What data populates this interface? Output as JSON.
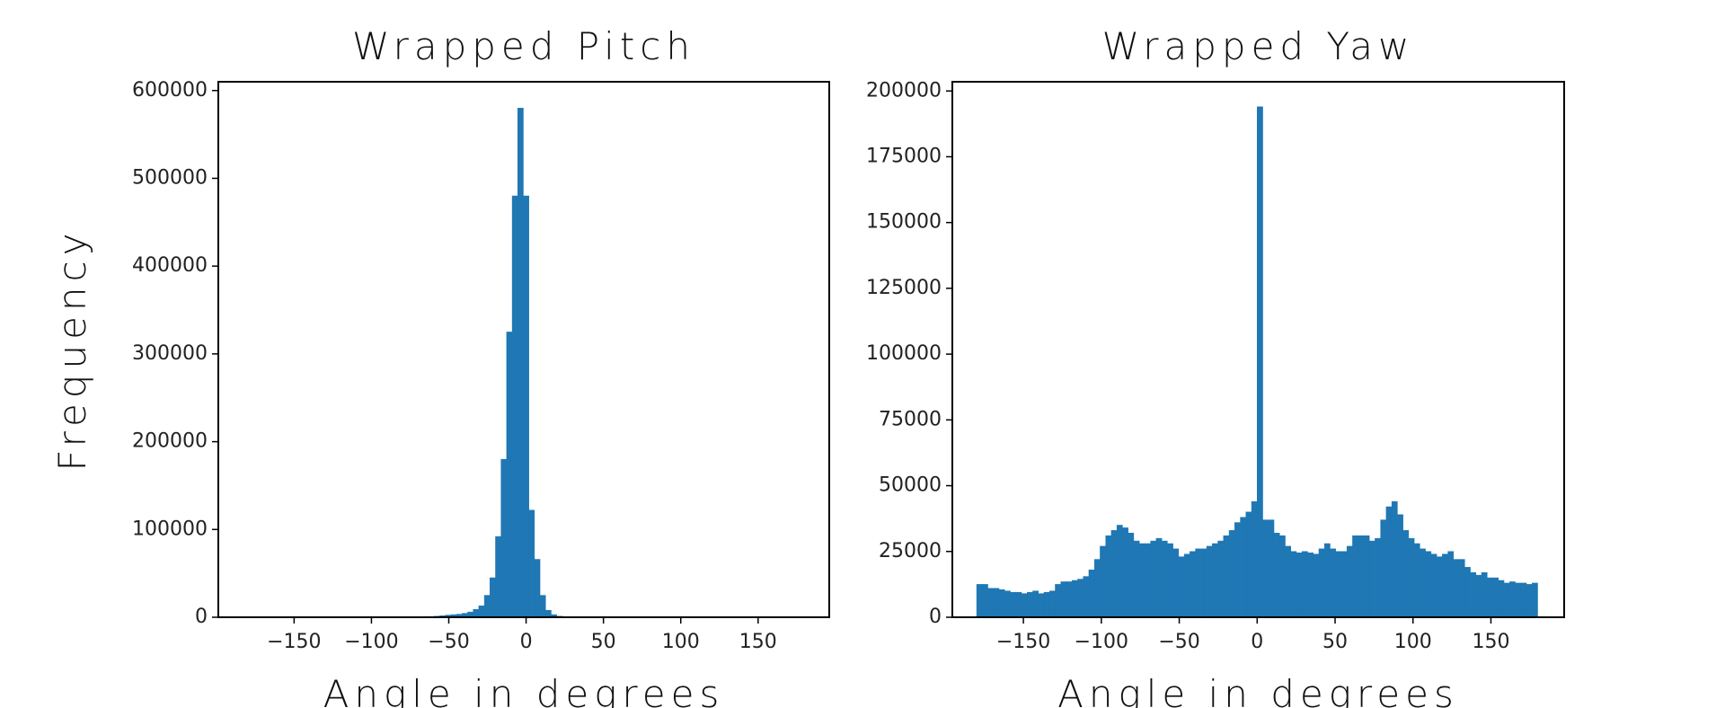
{
  "chart_data": [
    {
      "type": "histogram",
      "title": "Wrapped Pitch",
      "x_label": "Angle in degrees",
      "y_label": "Frequency",
      "color": "#1f77b4",
      "bins": [
        -70.2,
        -66.6,
        -63,
        -59.4,
        -55.8,
        -52.2,
        -48.6,
        -45,
        -41.4,
        -37.8,
        -34.2,
        -30.6,
        -27,
        -23.4,
        -19.8,
        -16.2,
        -12.6,
        -9,
        -5.4,
        -1.8,
        1.8,
        5.4,
        9,
        12.6,
        16.2,
        19.8,
        23.4,
        27
      ],
      "values": [
        300,
        500,
        800,
        1200,
        1800,
        2500,
        3000,
        3500,
        4500,
        6000,
        9000,
        13000,
        25000,
        45000,
        92000,
        180000,
        325000,
        480000,
        580000,
        480000,
        122000,
        66000,
        25000,
        8000,
        3000,
        1200,
        500
      ],
      "xlim": [
        -199,
        196
      ],
      "ylim": [
        0,
        610000
      ],
      "xticks": [
        {
          "value": -150,
          "label": "−150"
        },
        {
          "value": -100,
          "label": "−100"
        },
        {
          "value": -50,
          "label": "−50"
        },
        0,
        50,
        100,
        150
      ],
      "yticks": [
        0,
        100000,
        200000,
        300000,
        400000,
        500000,
        600000
      ]
    },
    {
      "type": "histogram",
      "title": "Wrapped Yaw",
      "x_label": "Angle in degrees",
      "color": "#1f77b4",
      "bins": [
        -180,
        -176.4,
        -172.8,
        -169.2,
        -165.6,
        -162,
        -158.4,
        -154.8,
        -151.2,
        -147.6,
        -144,
        -140.4,
        -136.8,
        -133.2,
        -129.6,
        -126,
        -122.4,
        -118.8,
        -115.2,
        -111.6,
        -108,
        -104.4,
        -100.8,
        -97.2,
        -93.6,
        -90,
        -86.4,
        -82.8,
        -79.2,
        -75.6,
        -72,
        -68.4,
        -64.8,
        -61.2,
        -57.6,
        -54,
        -50.4,
        -46.8,
        -43.2,
        -39.6,
        -36,
        -32.4,
        -28.8,
        -25.2,
        -21.6,
        -18,
        -14.4,
        -10.8,
        -7.2,
        -3.6,
        0,
        3.6,
        7.2,
        10.8,
        14.4,
        18,
        21.6,
        25.2,
        28.8,
        32.4,
        36,
        39.6,
        43.2,
        46.8,
        50.4,
        54,
        57.6,
        61.2,
        64.8,
        68.4,
        72,
        75.6,
        79.2,
        82.8,
        86.4,
        90,
        93.6,
        97.2,
        100.8,
        104.4,
        108,
        111.6,
        115.2,
        118.8,
        122.4,
        126,
        129.6,
        133.2,
        136.8,
        140.4,
        144,
        147.6,
        151.2,
        154.8,
        158.4,
        162,
        165.6,
        169.2,
        172.8,
        176.4,
        180
      ],
      "values": [
        12500,
        12500,
        11000,
        11000,
        10500,
        10000,
        9500,
        9500,
        9000,
        9500,
        10000,
        9000,
        9500,
        10000,
        12500,
        13500,
        13500,
        14000,
        14500,
        15500,
        18000,
        22000,
        27000,
        31000,
        33000,
        35000,
        34000,
        32000,
        29000,
        28000,
        28000,
        29000,
        30000,
        29000,
        28000,
        26000,
        23000,
        24000,
        25000,
        26000,
        26000,
        27000,
        28000,
        29000,
        31000,
        33000,
        36000,
        38000,
        40000,
        44000,
        194000,
        37000,
        37000,
        32000,
        31000,
        27000,
        25000,
        24500,
        25000,
        24500,
        24000,
        26000,
        28000,
        26000,
        25000,
        25000,
        27000,
        31000,
        31000,
        31000,
        29000,
        30000,
        37000,
        42000,
        44000,
        39000,
        33000,
        30000,
        28000,
        26000,
        25000,
        24000,
        23000,
        24000,
        25000,
        22000,
        22000,
        19000,
        17000,
        16000,
        17000,
        15000,
        15000,
        14000,
        13000,
        13500,
        13000,
        13000,
        12500,
        13000
      ],
      "xlim": [
        -195.6,
        197
      ],
      "ylim": [
        0,
        203500
      ],
      "xticks": [
        {
          "value": -150,
          "label": "−150"
        },
        {
          "value": -100,
          "label": "−100"
        },
        {
          "value": -50,
          "label": "−50"
        },
        0,
        50,
        100,
        150
      ],
      "yticks": [
        0,
        25000,
        50000,
        75000,
        100000,
        125000,
        150000,
        175000,
        200000
      ]
    }
  ]
}
